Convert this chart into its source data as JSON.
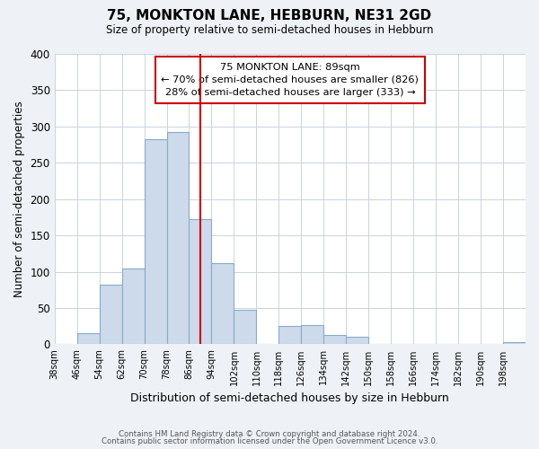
{
  "title": "75, MONKTON LANE, HEBBURN, NE31 2GD",
  "subtitle": "Size of property relative to semi-detached houses in Hebburn",
  "xlabel": "Distribution of semi-detached houses by size in Hebburn",
  "ylabel": "Number of semi-detached properties",
  "bin_labels": [
    "38sqm",
    "46sqm",
    "54sqm",
    "62sqm",
    "70sqm",
    "78sqm",
    "86sqm",
    "94sqm",
    "102sqm",
    "110sqm",
    "118sqm",
    "126sqm",
    "134sqm",
    "142sqm",
    "150sqm",
    "158sqm",
    "166sqm",
    "174sqm",
    "182sqm",
    "190sqm",
    "198sqm"
  ],
  "bin_edges": [
    38,
    46,
    54,
    62,
    70,
    78,
    86,
    94,
    102,
    110,
    118,
    126,
    134,
    142,
    150,
    158,
    166,
    174,
    182,
    190,
    198,
    206
  ],
  "bar_heights": [
    0,
    15,
    82,
    105,
    283,
    293,
    173,
    112,
    47,
    0,
    25,
    27,
    13,
    10,
    0,
    0,
    0,
    0,
    0,
    0,
    3
  ],
  "bar_color": "#ccdaeb",
  "bar_edge_color": "#8aaac8",
  "vline_color": "#cc0000",
  "vline_x": 90,
  "annotation_title": "75 MONKTON LANE: 89sqm",
  "annotation_line1": "← 70% of semi-detached houses are smaller (826)",
  "annotation_line2": "28% of semi-detached houses are larger (333) →",
  "annotation_box_color": "#ffffff",
  "annotation_box_edge_color": "#cc0000",
  "ylim": [
    0,
    400
  ],
  "yticks": [
    0,
    50,
    100,
    150,
    200,
    250,
    300,
    350,
    400
  ],
  "footer1": "Contains HM Land Registry data © Crown copyright and database right 2024.",
  "footer2": "Contains public sector information licensed under the Open Government Licence v3.0.",
  "background_color": "#eef2f7",
  "plot_background_color": "#ffffff",
  "grid_color": "#c8d4e0"
}
